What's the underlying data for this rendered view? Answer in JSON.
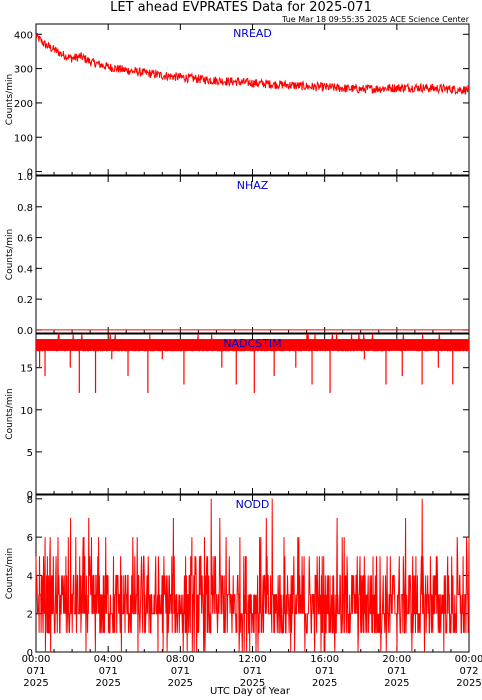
{
  "title": "LET ahead EVPRATES Data for 2025-071",
  "timestamp": "Tue Mar 18 09:55:35 2025 ACE Science Center",
  "xlabel": "UTC Day of Year",
  "colors": {
    "trace": "#ff0000",
    "panel_title": "#0000cc",
    "axes": "#000000"
  },
  "x_ticks": [
    {
      "time": "00:00",
      "doy": "071",
      "year": "2025",
      "hour": 0
    },
    {
      "time": "04:00",
      "doy": "071",
      "year": "2025",
      "hour": 4
    },
    {
      "time": "08:00",
      "doy": "071",
      "year": "2025",
      "hour": 8
    },
    {
      "time": "12:00",
      "doy": "071",
      "year": "2025",
      "hour": 12
    },
    {
      "time": "16:00",
      "doy": "071",
      "year": "2025",
      "hour": 16
    },
    {
      "time": "20:00",
      "doy": "071",
      "year": "2025",
      "hour": 20
    },
    {
      "time": "00:00",
      "doy": "072",
      "year": "2025",
      "hour": 24
    }
  ],
  "chart_data": [
    {
      "type": "line",
      "name": "NREAD",
      "ylabel": "Counts/min",
      "xlim": [
        0,
        24
      ],
      "ylim": [
        -10,
        430
      ],
      "yticks": [
        0,
        100,
        200,
        300,
        400
      ],
      "x": [
        0,
        0.5,
        1,
        1.5,
        2,
        2.5,
        3,
        4,
        5,
        6,
        7,
        8,
        9,
        10,
        11,
        12,
        13,
        14,
        15,
        16,
        17,
        18,
        19,
        20,
        21,
        22,
        23,
        24
      ],
      "y": [
        395,
        370,
        355,
        340,
        330,
        335,
        320,
        305,
        295,
        288,
        280,
        275,
        270,
        265,
        262,
        258,
        255,
        252,
        248,
        246,
        243,
        240,
        242,
        244,
        245,
        243,
        240,
        238
      ]
    },
    {
      "type": "line",
      "name": "NHAZ",
      "ylabel": "Counts/min",
      "xlim": [
        0,
        24
      ],
      "ylim": [
        -0.02,
        1.0
      ],
      "yticks": [
        0.0,
        0.2,
        0.4,
        0.6,
        0.8,
        1.0
      ],
      "x": [
        0,
        24
      ],
      "y": [
        0,
        0
      ]
    },
    {
      "type": "line",
      "name": "NADCSTIM",
      "ylabel": "Counts/min",
      "xlim": [
        0,
        24
      ],
      "ylim": [
        0,
        19
      ],
      "yticks": [
        0,
        5,
        10,
        15
      ],
      "baseline": 18,
      "dips_x": [
        0.2,
        0.5,
        1.2,
        1.9,
        2.4,
        3.3,
        4.2,
        5.1,
        6.2,
        7.0,
        8.2,
        10.3,
        11.1,
        12.1,
        13.2,
        14.4,
        15.3,
        16.3,
        18.2,
        19.4,
        20.3,
        21.4,
        22.3,
        23.1
      ],
      "dips_y": [
        15,
        14,
        17,
        15,
        12,
        12,
        16,
        14,
        12,
        16,
        13,
        15,
        13,
        12,
        14,
        15,
        13,
        12,
        16,
        13,
        14,
        13,
        15,
        13
      ]
    },
    {
      "type": "line",
      "name": "NODD",
      "ylabel": "Counts/min",
      "xlim": [
        0,
        24
      ],
      "ylim": [
        0,
        8.2
      ],
      "yticks": [
        0,
        2,
        4,
        6,
        8
      ],
      "typical_range": [
        1,
        4
      ],
      "max": 8,
      "min": 0
    }
  ]
}
